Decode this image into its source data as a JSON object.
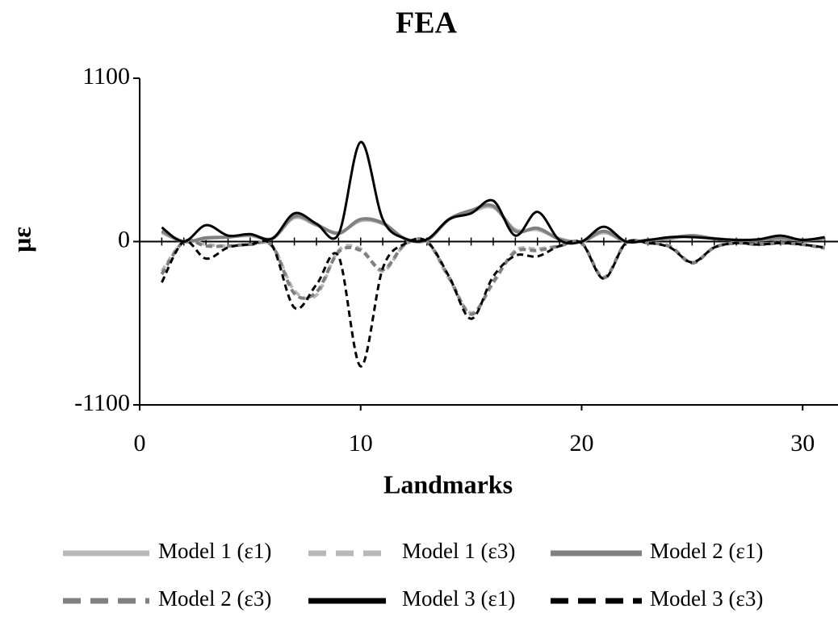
{
  "chart_data": {
    "type": "line",
    "title": "FEA",
    "x_label": "Landmarks",
    "y_label": "με",
    "x": [
      1,
      2,
      3,
      4,
      5,
      6,
      7,
      8,
      9,
      10,
      11,
      12,
      13,
      14,
      15,
      16,
      17,
      18,
      19,
      20,
      21,
      22,
      23,
      24,
      25,
      26,
      27,
      28,
      29,
      30,
      31
    ],
    "xlim": [
      0,
      31.6
    ],
    "xticks": [
      0,
      10,
      20,
      30
    ],
    "ylim": [
      -1100,
      1100
    ],
    "yticks": [
      -1100,
      0,
      1100
    ],
    "series": [
      {
        "name": "Model 1 (ε1)",
        "color": "#b8b8b8",
        "dash": false,
        "values": [
          60,
          0,
          20,
          30,
          40,
          20,
          160,
          110,
          60,
          140,
          120,
          20,
          10,
          150,
          200,
          230,
          80,
          80,
          20,
          0,
          60,
          0,
          10,
          20,
          40,
          20,
          10,
          10,
          20,
          10,
          20
        ]
      },
      {
        "name": "Model 1 (ε3)",
        "color": "#b8b8b8",
        "dash": true,
        "values": [
          -200,
          0,
          -20,
          -30,
          -20,
          -30,
          -330,
          -360,
          -60,
          -50,
          -200,
          -20,
          0,
          -250,
          -480,
          -280,
          -60,
          -50,
          -30,
          -10,
          -240,
          -10,
          -10,
          -30,
          -140,
          -40,
          -10,
          -20,
          -10,
          -20,
          -40
        ]
      },
      {
        "name": "Model 2 (ε1)",
        "color": "#808080",
        "dash": false,
        "values": [
          70,
          0,
          25,
          30,
          45,
          20,
          170,
          115,
          55,
          150,
          125,
          20,
          10,
          150,
          210,
          240,
          70,
          90,
          15,
          0,
          70,
          0,
          10,
          25,
          40,
          20,
          10,
          10,
          25,
          10,
          25
        ]
      },
      {
        "name": "Model 2 (ε3)",
        "color": "#808080",
        "dash": true,
        "values": [
          -220,
          0,
          -30,
          -30,
          -20,
          -30,
          -350,
          -340,
          -70,
          -60,
          -190,
          -20,
          0,
          -240,
          -490,
          -270,
          -70,
          -60,
          -30,
          -10,
          -245,
          -10,
          -10,
          -35,
          -145,
          -40,
          -10,
          -20,
          -10,
          -20,
          -45
        ]
      },
      {
        "name": "Model 3 (ε1)",
        "color": "#000000",
        "dash": false,
        "values": [
          95,
          0,
          110,
          40,
          50,
          20,
          190,
          120,
          50,
          670,
          150,
          20,
          15,
          150,
          190,
          275,
          40,
          200,
          10,
          0,
          100,
          0,
          10,
          30,
          30,
          20,
          10,
          15,
          40,
          10,
          30
        ]
      },
      {
        "name": "Model 3 (ε3)",
        "color": "#000000",
        "dash": true,
        "values": [
          -275,
          0,
          -115,
          -40,
          -20,
          -30,
          -445,
          -290,
          -100,
          -840,
          -180,
          -15,
          0,
          -235,
          -520,
          -235,
          -95,
          -100,
          -30,
          -10,
          -250,
          -10,
          -10,
          -40,
          -140,
          -40,
          -10,
          -20,
          -10,
          -20,
          -40
        ]
      }
    ]
  }
}
